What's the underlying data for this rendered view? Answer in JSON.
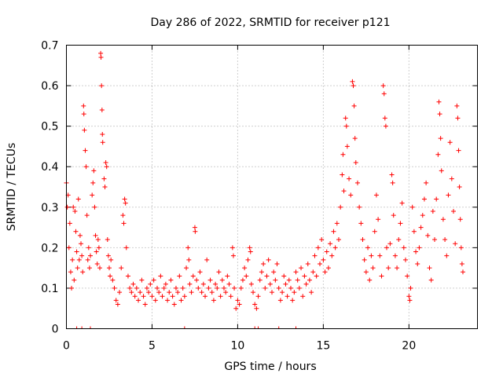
{
  "chart_data": {
    "type": "scatter",
    "title": "Day 286 of 2022, SRMTID for receiver p121",
    "xlabel": "GPS time / hours",
    "ylabel": "SRMTID / TECUs",
    "xlim": [
      0,
      24
    ],
    "ylim": [
      0,
      0.7
    ],
    "xticks": [
      0,
      5,
      10,
      15,
      20
    ],
    "yticks": [
      0,
      0.1,
      0.2,
      0.3,
      0.4,
      0.5,
      0.6,
      0.7
    ],
    "xtick_labels": [
      "0",
      "5",
      "10",
      "15",
      "20"
    ],
    "ytick_labels": [
      "0",
      "0.1",
      "0.2",
      "0.3",
      "0.4",
      "0.5",
      "0.6",
      "0.7"
    ],
    "grid": true,
    "marker": "+",
    "color": "#ff0000",
    "series": [
      {
        "name": "SRMTID",
        "points": [
          [
            0.0,
            0.36
          ],
          [
            0.05,
            0.3
          ],
          [
            0.1,
            0.33
          ],
          [
            0.15,
            0.2
          ],
          [
            0.2,
            0.26
          ],
          [
            0.25,
            0.14
          ],
          [
            0.3,
            0.1
          ],
          [
            0.35,
            0.17
          ],
          [
            0.4,
            0.3
          ],
          [
            0.45,
            0.12
          ],
          [
            0.5,
            0.29
          ],
          [
            0.55,
            0.24
          ],
          [
            0.6,
            0.19
          ],
          [
            0.65,
            0.15
          ],
          [
            0.7,
            0.32
          ],
          [
            0.75,
            0.17
          ],
          [
            0.8,
            0.23
          ],
          [
            0.85,
            0.21
          ],
          [
            0.9,
            0.18
          ],
          [
            0.95,
            0.14
          ],
          [
            1.0,
            0.55
          ],
          [
            1.02,
            0.53
          ],
          [
            1.05,
            0.49
          ],
          [
            1.1,
            0.44
          ],
          [
            1.15,
            0.4
          ],
          [
            1.2,
            0.28
          ],
          [
            1.25,
            0.17
          ],
          [
            1.3,
            0.2
          ],
          [
            1.35,
            0.15
          ],
          [
            1.4,
            0.18
          ],
          [
            1.5,
            0.33
          ],
          [
            1.55,
            0.36
          ],
          [
            1.6,
            0.39
          ],
          [
            1.65,
            0.3
          ],
          [
            1.7,
            0.23
          ],
          [
            1.75,
            0.19
          ],
          [
            1.8,
            0.16
          ],
          [
            1.85,
            0.22
          ],
          [
            1.9,
            0.2
          ],
          [
            1.95,
            0.15
          ],
          [
            2.0,
            0.68
          ],
          [
            2.02,
            0.67
          ],
          [
            2.05,
            0.6
          ],
          [
            2.08,
            0.54
          ],
          [
            2.1,
            0.48
          ],
          [
            2.12,
            0.46
          ],
          [
            2.2,
            0.37
          ],
          [
            2.25,
            0.35
          ],
          [
            2.3,
            0.41
          ],
          [
            2.35,
            0.4
          ],
          [
            2.4,
            0.22
          ],
          [
            2.45,
            0.18
          ],
          [
            2.5,
            0.15
          ],
          [
            2.55,
            0.13
          ],
          [
            2.6,
            0.17
          ],
          [
            2.7,
            0.12
          ],
          [
            2.8,
            0.1
          ],
          [
            2.9,
            0.07
          ],
          [
            3.0,
            0.06
          ],
          [
            3.1,
            0.09
          ],
          [
            3.2,
            0.15
          ],
          [
            3.3,
            0.28
          ],
          [
            3.35,
            0.26
          ],
          [
            3.4,
            0.32
          ],
          [
            3.45,
            0.31
          ],
          [
            3.5,
            0.2
          ],
          [
            3.6,
            0.13
          ],
          [
            3.7,
            0.1
          ],
          [
            3.8,
            0.09
          ],
          [
            3.9,
            0.11
          ],
          [
            4.0,
            0.08
          ],
          [
            4.1,
            0.1
          ],
          [
            4.2,
            0.07
          ],
          [
            4.3,
            0.09
          ],
          [
            4.4,
            0.12
          ],
          [
            4.5,
            0.08
          ],
          [
            4.6,
            0.06
          ],
          [
            4.7,
            0.1
          ],
          [
            4.8,
            0.09
          ],
          [
            4.9,
            0.11
          ],
          [
            5.0,
            0.08
          ],
          [
            5.1,
            0.12
          ],
          [
            5.2,
            0.07
          ],
          [
            5.3,
            0.1
          ],
          [
            5.4,
            0.09
          ],
          [
            5.5,
            0.13
          ],
          [
            5.6,
            0.08
          ],
          [
            5.7,
            0.1
          ],
          [
            5.8,
            0.11
          ],
          [
            5.9,
            0.07
          ],
          [
            6.0,
            0.09
          ],
          [
            6.1,
            0.12
          ],
          [
            6.2,
            0.08
          ],
          [
            6.3,
            0.06
          ],
          [
            6.4,
            0.1
          ],
          [
            6.5,
            0.09
          ],
          [
            6.6,
            0.13
          ],
          [
            6.7,
            0.07
          ],
          [
            6.8,
            0.1
          ],
          [
            6.9,
            0.08
          ],
          [
            7.0,
            0.15
          ],
          [
            7.1,
            0.2
          ],
          [
            7.15,
            0.17
          ],
          [
            7.2,
            0.11
          ],
          [
            7.3,
            0.09
          ],
          [
            7.4,
            0.13
          ],
          [
            7.5,
            0.25
          ],
          [
            7.52,
            0.24
          ],
          [
            7.6,
            0.12
          ],
          [
            7.7,
            0.1
          ],
          [
            7.8,
            0.14
          ],
          [
            7.9,
            0.09
          ],
          [
            8.0,
            0.11
          ],
          [
            8.1,
            0.08
          ],
          [
            8.2,
            0.17
          ],
          [
            8.3,
            0.1
          ],
          [
            8.4,
            0.12
          ],
          [
            8.5,
            0.09
          ],
          [
            8.6,
            0.07
          ],
          [
            8.7,
            0.11
          ],
          [
            8.8,
            0.1
          ],
          [
            8.9,
            0.14
          ],
          [
            9.0,
            0.08
          ],
          [
            9.1,
            0.12
          ],
          [
            9.2,
            0.1
          ],
          [
            9.3,
            0.09
          ],
          [
            9.4,
            0.13
          ],
          [
            9.5,
            0.11
          ],
          [
            9.6,
            0.08
          ],
          [
            9.7,
            0.2
          ],
          [
            9.75,
            0.18
          ],
          [
            9.8,
            0.1
          ],
          [
            9.9,
            0.05
          ],
          [
            10.0,
            0.07
          ],
          [
            10.1,
            0.06
          ],
          [
            10.2,
            0.1
          ],
          [
            10.3,
            0.12
          ],
          [
            10.4,
            0.15
          ],
          [
            10.5,
            0.13
          ],
          [
            10.6,
            0.17
          ],
          [
            10.7,
            0.2
          ],
          [
            10.75,
            0.19
          ],
          [
            10.8,
            0.11
          ],
          [
            10.9,
            0.09
          ],
          [
            11.0,
            0.06
          ],
          [
            11.1,
            0.05
          ],
          [
            11.2,
            0.08
          ],
          [
            11.3,
            0.12
          ],
          [
            11.4,
            0.14
          ],
          [
            11.5,
            0.16
          ],
          [
            11.6,
            0.1
          ],
          [
            11.7,
            0.13
          ],
          [
            11.8,
            0.17
          ],
          [
            11.9,
            0.11
          ],
          [
            12.0,
            0.09
          ],
          [
            12.1,
            0.14
          ],
          [
            12.2,
            0.12
          ],
          [
            12.3,
            0.16
          ],
          [
            12.4,
            0.1
          ],
          [
            12.5,
            0.07
          ],
          [
            12.6,
            0.09
          ],
          [
            12.7,
            0.13
          ],
          [
            12.8,
            0.11
          ],
          [
            12.9,
            0.08
          ],
          [
            13.0,
            0.12
          ],
          [
            13.1,
            0.1
          ],
          [
            13.2,
            0.07
          ],
          [
            13.3,
            0.09
          ],
          [
            13.4,
            0.14
          ],
          [
            13.5,
            0.12
          ],
          [
            13.6,
            0.1
          ],
          [
            13.7,
            0.15
          ],
          [
            13.8,
            0.08
          ],
          [
            13.9,
            0.13
          ],
          [
            14.0,
            0.11
          ],
          [
            14.1,
            0.16
          ],
          [
            14.2,
            0.12
          ],
          [
            14.3,
            0.09
          ],
          [
            14.4,
            0.14
          ],
          [
            14.5,
            0.18
          ],
          [
            14.6,
            0.13
          ],
          [
            14.7,
            0.2
          ],
          [
            14.8,
            0.16
          ],
          [
            14.9,
            0.22
          ],
          [
            15.0,
            0.17
          ],
          [
            15.1,
            0.14
          ],
          [
            15.2,
            0.19
          ],
          [
            15.3,
            0.15
          ],
          [
            15.4,
            0.21
          ],
          [
            15.5,
            0.18
          ],
          [
            15.6,
            0.24
          ],
          [
            15.7,
            0.2
          ],
          [
            15.8,
            0.26
          ],
          [
            15.9,
            0.22
          ],
          [
            16.0,
            0.3
          ],
          [
            16.1,
            0.38
          ],
          [
            16.15,
            0.43
          ],
          [
            16.2,
            0.34
          ],
          [
            16.3,
            0.52
          ],
          [
            16.35,
            0.5
          ],
          [
            16.4,
            0.45
          ],
          [
            16.5,
            0.37
          ],
          [
            16.6,
            0.33
          ],
          [
            16.7,
            0.61
          ],
          [
            16.75,
            0.6
          ],
          [
            16.8,
            0.55
          ],
          [
            16.85,
            0.47
          ],
          [
            16.9,
            0.41
          ],
          [
            17.0,
            0.36
          ],
          [
            17.1,
            0.3
          ],
          [
            17.2,
            0.26
          ],
          [
            17.3,
            0.22
          ],
          [
            17.4,
            0.17
          ],
          [
            17.5,
            0.14
          ],
          [
            17.6,
            0.2
          ],
          [
            17.7,
            0.12
          ],
          [
            17.8,
            0.18
          ],
          [
            17.9,
            0.15
          ],
          [
            18.0,
            0.24
          ],
          [
            18.1,
            0.33
          ],
          [
            18.2,
            0.27
          ],
          [
            18.3,
            0.18
          ],
          [
            18.4,
            0.13
          ],
          [
            18.5,
            0.6
          ],
          [
            18.55,
            0.58
          ],
          [
            18.6,
            0.52
          ],
          [
            18.65,
            0.5
          ],
          [
            18.7,
            0.2
          ],
          [
            18.8,
            0.15
          ],
          [
            18.9,
            0.21
          ],
          [
            19.0,
            0.38
          ],
          [
            19.05,
            0.36
          ],
          [
            19.1,
            0.28
          ],
          [
            19.2,
            0.18
          ],
          [
            19.3,
            0.15
          ],
          [
            19.4,
            0.22
          ],
          [
            19.5,
            0.26
          ],
          [
            19.6,
            0.31
          ],
          [
            19.7,
            0.2
          ],
          [
            19.8,
            0.17
          ],
          [
            19.9,
            0.13
          ],
          [
            20.0,
            0.08
          ],
          [
            20.05,
            0.07
          ],
          [
            20.1,
            0.1
          ],
          [
            20.2,
            0.3
          ],
          [
            20.3,
            0.24
          ],
          [
            20.4,
            0.19
          ],
          [
            20.5,
            0.16
          ],
          [
            20.6,
            0.2
          ],
          [
            20.7,
            0.25
          ],
          [
            20.8,
            0.28
          ],
          [
            20.9,
            0.32
          ],
          [
            21.0,
            0.36
          ],
          [
            21.1,
            0.23
          ],
          [
            21.2,
            0.15
          ],
          [
            21.3,
            0.12
          ],
          [
            21.4,
            0.29
          ],
          [
            21.5,
            0.22
          ],
          [
            21.6,
            0.32
          ],
          [
            21.7,
            0.43
          ],
          [
            21.75,
            0.56
          ],
          [
            21.8,
            0.53
          ],
          [
            21.85,
            0.47
          ],
          [
            21.9,
            0.39
          ],
          [
            22.0,
            0.27
          ],
          [
            22.1,
            0.22
          ],
          [
            22.2,
            0.18
          ],
          [
            22.3,
            0.33
          ],
          [
            22.4,
            0.46
          ],
          [
            22.5,
            0.37
          ],
          [
            22.6,
            0.29
          ],
          [
            22.7,
            0.21
          ],
          [
            22.8,
            0.55
          ],
          [
            22.85,
            0.52
          ],
          [
            22.9,
            0.44
          ],
          [
            22.95,
            0.35
          ],
          [
            23.0,
            0.27
          ],
          [
            23.05,
            0.2
          ],
          [
            23.1,
            0.16
          ],
          [
            23.15,
            0.14
          ]
        ]
      }
    ],
    "baseline_marks_x": [
      0.6,
      0.9,
      1.4,
      6.9,
      11.0,
      11.2,
      12.4,
      13.4
    ]
  }
}
